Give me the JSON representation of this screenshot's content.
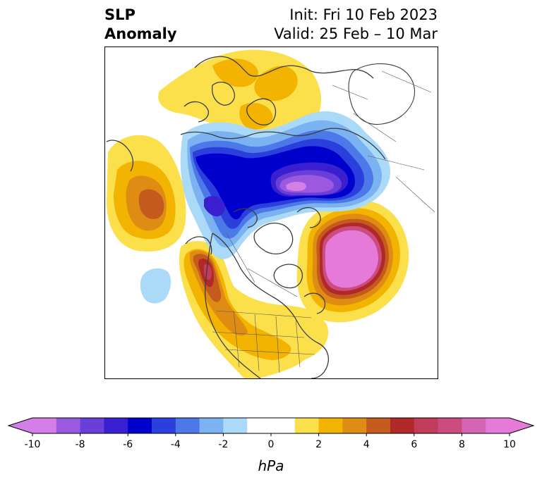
{
  "title": {
    "left_line1": "SLP",
    "left_line2": "Anomaly",
    "init": "Init: Fri 10 Feb 2023",
    "valid": "Valid: 25 Feb – 10 Mar"
  },
  "colorbar": {
    "unit": "hPa",
    "min": -10,
    "max": 10,
    "step": 1,
    "extend": "both",
    "tick_labels": [
      "-10",
      "-8",
      "-6",
      "-4",
      "-2",
      "0",
      "2",
      "4",
      "6",
      "8",
      "10"
    ],
    "colors": [
      "#d47ee8",
      "#9b59e0",
      "#6a3ed8",
      "#3a1fd0",
      "#0000cc",
      "#2b3fdc",
      "#4c78e8",
      "#7bb2f2",
      "#aadaf8",
      "#ffffff",
      "#ffffff",
      "#fbe04c",
      "#f2b400",
      "#de8c14",
      "#c45a1c",
      "#b02828",
      "#c03c5a",
      "#cc4c80",
      "#d664b4",
      "#e57ad8"
    ]
  },
  "map": {
    "field": "sea level pressure anomaly",
    "projection": "north polar stereographic"
  }
}
